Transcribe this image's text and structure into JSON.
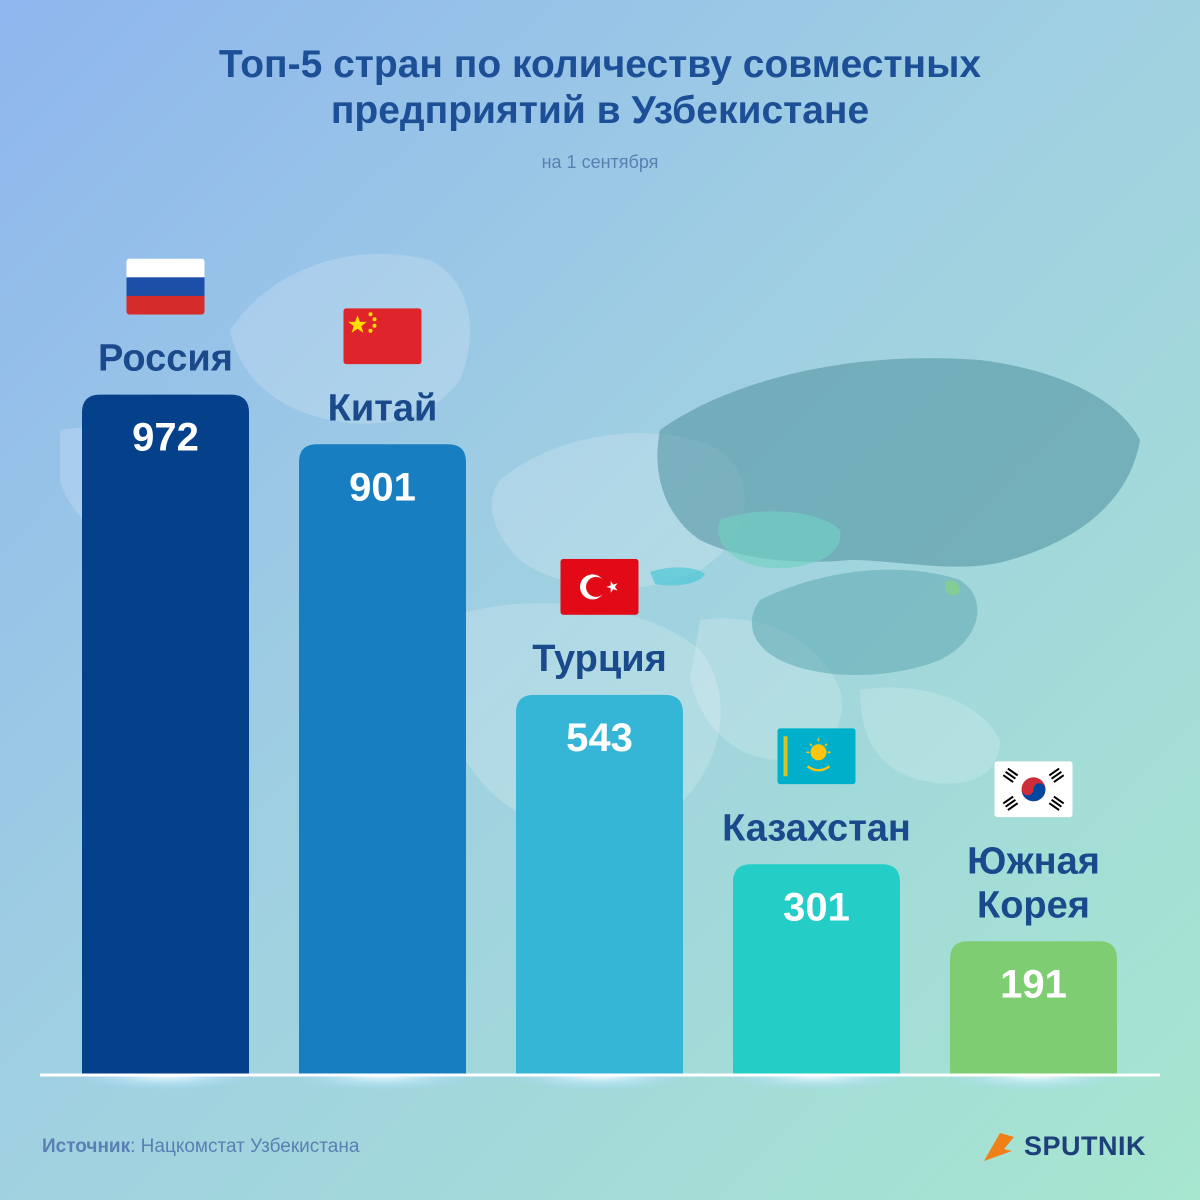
{
  "header": {
    "title_line1": "Топ-5 стран по количеству совместных",
    "title_line2": "предприятий в Узбекистане",
    "subtitle": "на 1 сентября"
  },
  "chart_data": {
    "type": "bar",
    "title": "Топ-5 стран по количеству совместных предприятий в Узбекистане",
    "subtitle": "на 1 сентября",
    "categories": [
      "Россия",
      "Китай",
      "Турция",
      "Казахстан",
      "Южная Корея"
    ],
    "category_lines": [
      [
        "Россия"
      ],
      [
        "Китай"
      ],
      [
        "Турция"
      ],
      [
        "Казахстан"
      ],
      [
        "Южная",
        "Корея"
      ]
    ],
    "values": [
      972,
      901,
      543,
      301,
      191
    ],
    "flags": [
      "russia-flag-icon",
      "china-flag-icon",
      "turkey-flag-icon",
      "kazakhstan-flag-icon",
      "south-korea-flag-icon"
    ],
    "colors": [
      "#05418a",
      "#177ec1",
      "#36b6d6",
      "#24cdc5",
      "#7ecd72"
    ],
    "xlabel": "",
    "ylabel": "",
    "grid": false
  },
  "footer": {
    "source_label": "Источник",
    "source_text": ": Нацкомстат Узбекистана",
    "logo_text": "SPUTNIK"
  }
}
